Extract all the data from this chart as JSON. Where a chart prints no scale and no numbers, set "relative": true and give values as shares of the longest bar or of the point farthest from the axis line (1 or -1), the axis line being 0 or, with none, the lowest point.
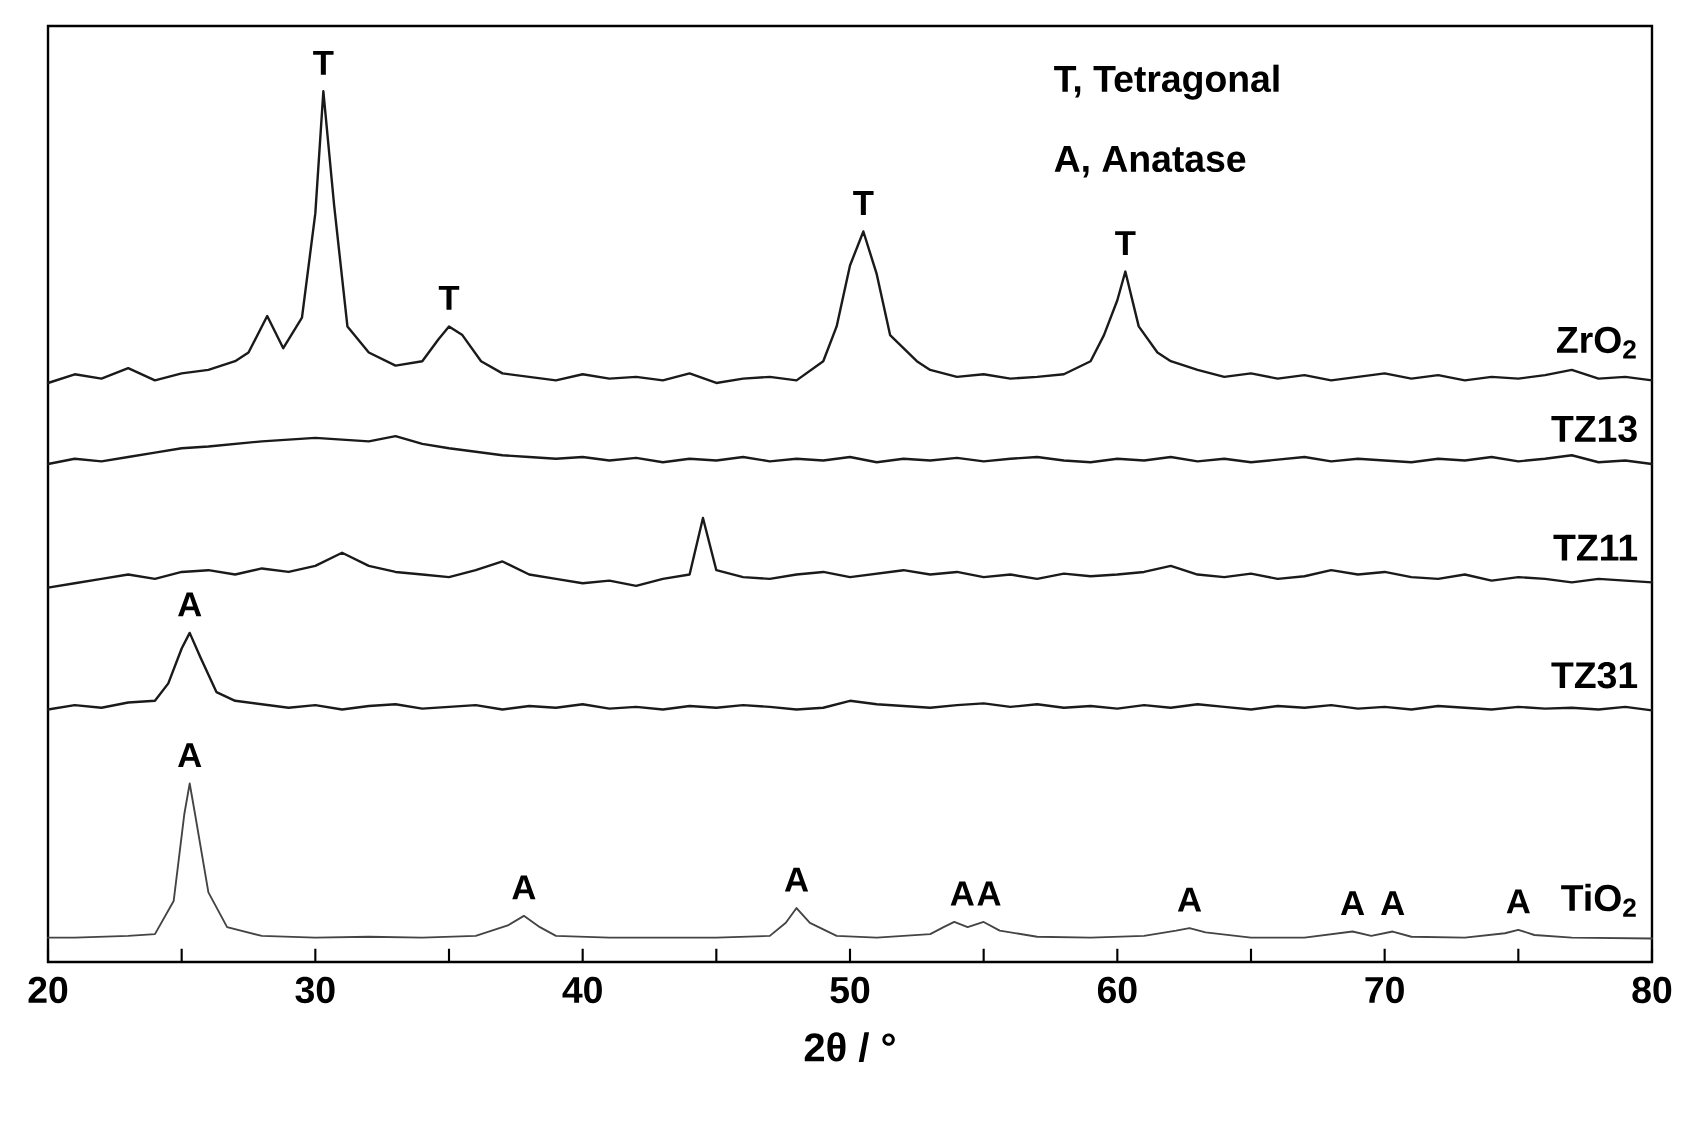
{
  "chart_data": {
    "type": "line",
    "relative": true,
    "xlabel": "2θ / °",
    "xlim": [
      20,
      80
    ],
    "xticks": [
      20,
      {
        "value": 25,
        "label": null
      },
      30,
      {
        "value": 35,
        "label": null
      },
      40,
      {
        "value": 45,
        "label": null
      },
      50,
      {
        "value": 55,
        "label": null
      },
      60,
      {
        "value": 65,
        "label": null
      },
      70,
      {
        "value": 75,
        "label": null
      },
      80
    ],
    "series": [
      {
        "name": "ZrO$_{2}$",
        "color": "#1a1a1a",
        "x": [
          20,
          21,
          22,
          23,
          24,
          25,
          26,
          27,
          27.5,
          28.2,
          28.8,
          29.5,
          30,
          30.3,
          30.7,
          31.2,
          32,
          33,
          34,
          34.6,
          35,
          35.5,
          36.2,
          37,
          38,
          39,
          40,
          41,
          42,
          43,
          44,
          45,
          46,
          47,
          48,
          49,
          49.5,
          50,
          50.5,
          51,
          51.5,
          52.5,
          53,
          54,
          55,
          56,
          57,
          58,
          59,
          59.5,
          60,
          60.3,
          60.8,
          61.5,
          62,
          63,
          64,
          65,
          66,
          67,
          68,
          69,
          70,
          71,
          72,
          73,
          74,
          75,
          76,
          77,
          78,
          79,
          80
        ],
        "values": [
          0.665,
          0.675,
          0.67,
          0.682,
          0.668,
          0.676,
          0.68,
          0.69,
          0.7,
          0.742,
          0.705,
          0.74,
          0.86,
          1.0,
          0.87,
          0.73,
          0.7,
          0.685,
          0.69,
          0.715,
          0.73,
          0.72,
          0.69,
          0.676,
          0.672,
          0.668,
          0.675,
          0.67,
          0.672,
          0.668,
          0.676,
          0.665,
          0.67,
          0.672,
          0.668,
          0.69,
          0.73,
          0.8,
          0.839,
          0.79,
          0.72,
          0.69,
          0.68,
          0.672,
          0.675,
          0.67,
          0.672,
          0.675,
          0.69,
          0.72,
          0.76,
          0.793,
          0.73,
          0.7,
          0.69,
          0.68,
          0.672,
          0.676,
          0.67,
          0.674,
          0.668,
          0.672,
          0.676,
          0.67,
          0.674,
          0.668,
          0.672,
          0.67,
          0.674,
          0.68,
          0.67,
          0.672,
          0.668
        ]
      },
      {
        "name": "TZ13",
        "color": "#1a1a1a",
        "x": [
          20,
          21,
          22,
          23,
          24,
          25,
          26,
          27,
          28,
          29,
          30,
          31,
          32,
          33,
          34,
          35,
          36,
          37,
          38,
          39,
          40,
          41,
          42,
          43,
          44,
          45,
          46,
          47,
          48,
          49,
          50,
          51,
          52,
          53,
          54,
          55,
          56,
          57,
          58,
          59,
          60,
          61,
          62,
          63,
          64,
          65,
          66,
          67,
          68,
          69,
          70,
          71,
          72,
          73,
          74,
          75,
          76,
          77,
          78,
          79,
          80
        ],
        "values": [
          0.572,
          0.578,
          0.575,
          0.58,
          0.585,
          0.59,
          0.592,
          0.595,
          0.598,
          0.6,
          0.602,
          0.6,
          0.598,
          0.604,
          0.595,
          0.59,
          0.586,
          0.582,
          0.58,
          0.578,
          0.58,
          0.576,
          0.579,
          0.574,
          0.578,
          0.576,
          0.58,
          0.575,
          0.578,
          0.576,
          0.58,
          0.574,
          0.578,
          0.576,
          0.579,
          0.575,
          0.578,
          0.58,
          0.576,
          0.574,
          0.578,
          0.576,
          0.58,
          0.575,
          0.578,
          0.574,
          0.577,
          0.58,
          0.575,
          0.578,
          0.576,
          0.574,
          0.578,
          0.576,
          0.58,
          0.575,
          0.578,
          0.582,
          0.574,
          0.576,
          0.572
        ]
      },
      {
        "name": "TZ11",
        "color": "#1a1a1a",
        "x": [
          20,
          21,
          22,
          23,
          24,
          25,
          26,
          27,
          28,
          29,
          30,
          31,
          32,
          33,
          34,
          35,
          36,
          37,
          38,
          39,
          40,
          41,
          42,
          43,
          44,
          44.5,
          45,
          46,
          47,
          48,
          49,
          50,
          51,
          52,
          53,
          54,
          55,
          56,
          57,
          58,
          59,
          60,
          61,
          62,
          63,
          64,
          65,
          66,
          67,
          68,
          69,
          70,
          71,
          72,
          73,
          74,
          75,
          76,
          77,
          78,
          79,
          80
        ],
        "values": [
          0.43,
          0.435,
          0.44,
          0.445,
          0.44,
          0.448,
          0.45,
          0.445,
          0.452,
          0.448,
          0.455,
          0.47,
          0.455,
          0.448,
          0.445,
          0.442,
          0.45,
          0.46,
          0.445,
          0.44,
          0.435,
          0.438,
          0.432,
          0.44,
          0.445,
          0.51,
          0.45,
          0.442,
          0.44,
          0.445,
          0.448,
          0.442,
          0.446,
          0.45,
          0.445,
          0.448,
          0.442,
          0.445,
          0.44,
          0.446,
          0.443,
          0.445,
          0.448,
          0.455,
          0.445,
          0.442,
          0.446,
          0.44,
          0.443,
          0.45,
          0.445,
          0.448,
          0.442,
          0.44,
          0.445,
          0.438,
          0.442,
          0.44,
          0.436,
          0.44,
          0.438,
          0.436
        ]
      },
      {
        "name": "TZ31",
        "color": "#1a1a1a",
        "x": [
          20,
          21,
          22,
          23,
          24,
          24.5,
          25,
          25.3,
          25.7,
          26.3,
          27,
          28,
          29,
          30,
          31,
          32,
          33,
          34,
          35,
          36,
          37,
          38,
          39,
          40,
          41,
          42,
          43,
          44,
          45,
          46,
          47,
          48,
          49,
          50,
          51,
          52,
          53,
          54,
          55,
          56,
          57,
          58,
          59,
          60,
          61,
          62,
          63,
          64,
          65,
          66,
          67,
          68,
          69,
          70,
          71,
          72,
          73,
          74,
          75,
          76,
          77,
          78,
          79,
          80
        ],
        "values": [
          0.29,
          0.295,
          0.292,
          0.298,
          0.3,
          0.32,
          0.36,
          0.378,
          0.35,
          0.31,
          0.3,
          0.296,
          0.292,
          0.295,
          0.29,
          0.294,
          0.296,
          0.291,
          0.293,
          0.295,
          0.29,
          0.294,
          0.292,
          0.296,
          0.291,
          0.293,
          0.29,
          0.294,
          0.292,
          0.295,
          0.293,
          0.29,
          0.292,
          0.3,
          0.296,
          0.294,
          0.292,
          0.295,
          0.297,
          0.293,
          0.296,
          0.292,
          0.294,
          0.291,
          0.295,
          0.292,
          0.296,
          0.293,
          0.29,
          0.294,
          0.292,
          0.295,
          0.291,
          0.293,
          0.29,
          0.294,
          0.292,
          0.29,
          0.293,
          0.291,
          0.292,
          0.29,
          0.293,
          0.289
        ]
      },
      {
        "name": "TiO$_{2}$",
        "color": "#444444",
        "x": [
          20,
          21,
          22,
          23,
          24,
          24.7,
          25.1,
          25.3,
          25.5,
          26,
          26.7,
          28,
          30,
          32,
          34,
          36,
          37.2,
          37.8,
          38.4,
          39,
          41,
          43,
          45,
          47,
          47.6,
          48,
          48.5,
          49.5,
          51,
          53,
          53.5,
          53.9,
          54.4,
          55,
          55.6,
          57,
          59,
          61,
          62.2,
          62.7,
          63.3,
          65,
          67,
          68.8,
          69.5,
          70.3,
          71,
          73,
          74.5,
          75,
          75.6,
          77,
          80
        ],
        "values": [
          0.028,
          0.028,
          0.029,
          0.03,
          0.032,
          0.07,
          0.17,
          0.205,
          0.17,
          0.08,
          0.04,
          0.03,
          0.028,
          0.029,
          0.028,
          0.03,
          0.042,
          0.053,
          0.04,
          0.03,
          0.028,
          0.028,
          0.028,
          0.03,
          0.045,
          0.062,
          0.045,
          0.03,
          0.028,
          0.032,
          0.04,
          0.046,
          0.04,
          0.046,
          0.036,
          0.029,
          0.028,
          0.03,
          0.036,
          0.039,
          0.034,
          0.028,
          0.028,
          0.035,
          0.03,
          0.035,
          0.029,
          0.028,
          0.033,
          0.037,
          0.031,
          0.028,
          0.027
        ]
      }
    ],
    "annotations": [
      "T, Tetragonal",
      "A, Anatase",
      {
        "text": "T",
        "x": 30.3,
        "y": 1.0
      },
      {
        "text": "T",
        "x": 35,
        "y": 0.73
      },
      {
        "text": "T",
        "x": 50.5,
        "y": 0.839
      },
      {
        "text": "T",
        "x": 60.3,
        "y": 0.793
      },
      {
        "text": "A",
        "x": 25.3,
        "y": 0.378
      },
      {
        "text": "A",
        "x": 25.3,
        "y": 0.205
      },
      {
        "text": "A",
        "x": 37.8,
        "y": 0.053
      },
      {
        "text": "A",
        "x": 48,
        "y": 0.062
      },
      {
        "text": "A",
        "x": 54.2,
        "y": 0.046
      },
      {
        "text": "A",
        "x": 55.2,
        "y": 0.046
      },
      {
        "text": "A",
        "x": 62.7,
        "y": 0.039
      },
      {
        "text": "A",
        "x": 68.8,
        "y": 0.035
      },
      {
        "text": "A",
        "x": 70.3,
        "y": 0.035
      },
      {
        "text": "A",
        "x": 75,
        "y": 0.037
      }
    ]
  }
}
